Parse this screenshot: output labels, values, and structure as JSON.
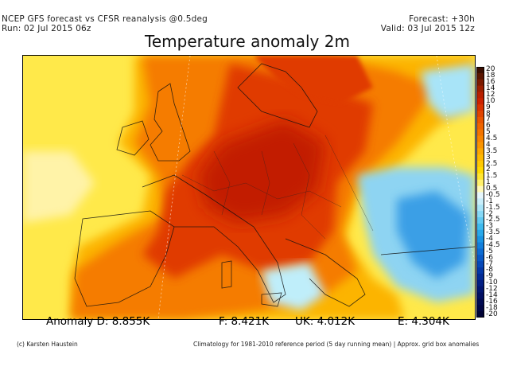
{
  "header": {
    "line1": "NCEP GFS forecast vs CFSR reanalysis @0.5deg",
    "line2": "Run: 02 Jul 2015 06z",
    "forecast": "Forecast: +30h",
    "valid": "Valid: 03 Jul 2015 12z"
  },
  "title": "Temperature anomaly 2m",
  "colorbar": {
    "labels": [
      "20",
      "18",
      "16",
      "14",
      "12",
      "10",
      "9",
      "8",
      "7",
      "6",
      "5",
      "4.5",
      "4",
      "3.5",
      "3",
      "2.5",
      "2",
      "1.5",
      "1",
      "0.5",
      "-0.5",
      "-1",
      "-1.5",
      "-2",
      "-2.5",
      "-3",
      "-3.5",
      "-4",
      "-4.5",
      "-5",
      "-6",
      "-7",
      "-8",
      "-9",
      "-10",
      "-12",
      "-14",
      "-16",
      "-18",
      "-20"
    ],
    "colors": [
      "#3a0d00",
      "#5a1500",
      "#7c1a00",
      "#9c1f00",
      "#b81f00",
      "#cc2200",
      "#d83300",
      "#e04400",
      "#e85500",
      "#ee6400",
      "#f27400",
      "#f68400",
      "#f99400",
      "#fba700",
      "#fdb800",
      "#fec800",
      "#ffd800",
      "#ffe530",
      "#fff06a",
      "#fff8b8",
      "#e6f6fc",
      "#c8eefa",
      "#a8e4f8",
      "#86d8f6",
      "#62caf2",
      "#3fbaee",
      "#28a8ea",
      "#1994e4",
      "#127fdc",
      "#0c6bd2",
      "#0859c6",
      "#0548b8",
      "#0338a8",
      "#022b96",
      "#021f84",
      "#011672",
      "#010f62",
      "#010a52",
      "#010644",
      "#000336"
    ]
  },
  "stats": {
    "d": "Anomaly D: 8.855K",
    "f": "F: 8.421K",
    "uk": "UK: 4.012K",
    "e": "E: 4.304K"
  },
  "footer": {
    "left": "(c) Karsten Haustein",
    "right": "Climatology for 1981-2010 reference period (5 day running mean) | Approx. grid box anomalies"
  }
}
